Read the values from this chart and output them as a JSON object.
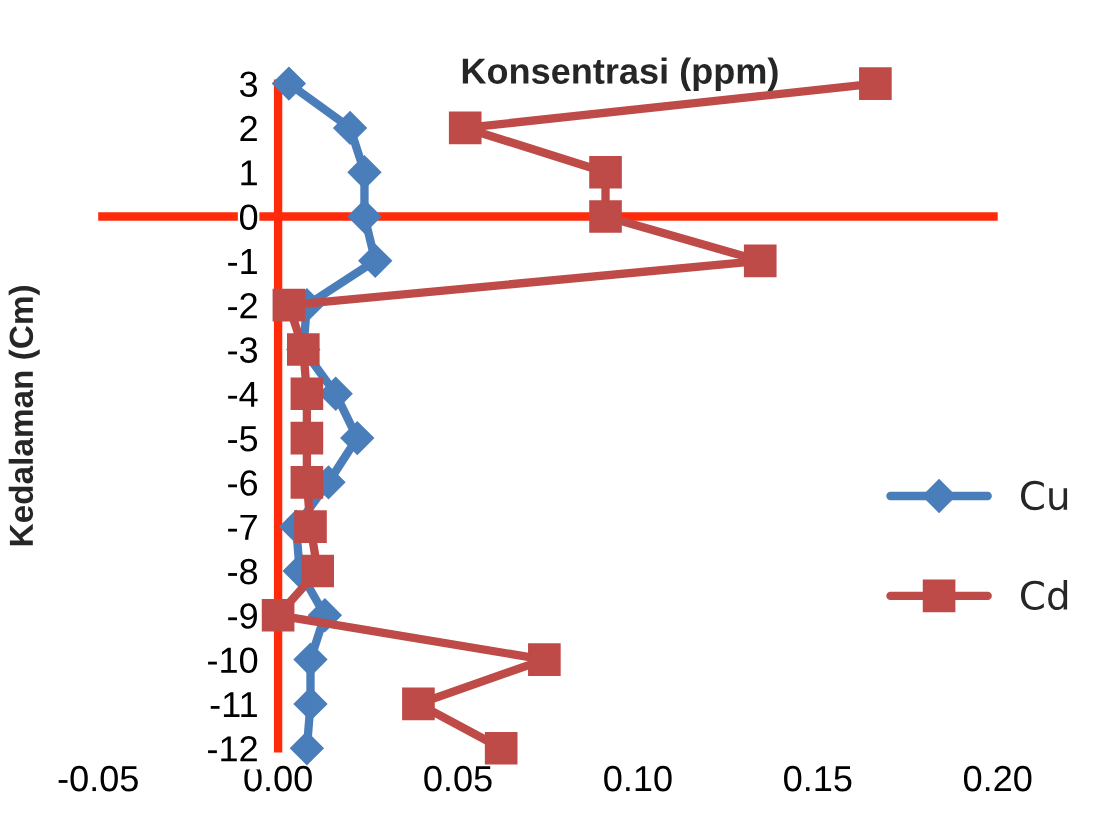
{
  "chart_data": {
    "type": "line",
    "xlabel": "Konsentrasi (ppm)",
    "ylabel": "Kedalaman (Cm)",
    "xlim": [
      -0.05,
      0.2
    ],
    "ylim": [
      -12,
      3
    ],
    "xticks": [
      {
        "value": -0.05,
        "label": "-0.05"
      },
      {
        "value": 0,
        "label": "0.00"
      },
      {
        "value": 0.05,
        "label": "0.05"
      },
      {
        "value": 0.1,
        "label": "0.10"
      },
      {
        "value": 0.15,
        "label": "0.15"
      },
      {
        "value": 0.2,
        "label": "0.20"
      }
    ],
    "yticks": [
      3,
      2,
      1,
      0,
      -1,
      -2,
      -3,
      -4,
      -5,
      -6,
      -7,
      -8,
      -9,
      -10,
      -11,
      -12
    ],
    "ref_lines": [
      {
        "axis": "y",
        "value": 0,
        "color": "#ff2a0a"
      }
    ],
    "legend": "right",
    "line_style": "solid",
    "grid": false,
    "series": [
      {
        "name": "Cu",
        "color": "#4a7ebb",
        "marker": "diamond",
        "x": [
          0.003,
          0.02,
          0.024,
          0.024,
          0.027,
          0.008,
          0.007,
          0.016,
          0.022,
          0.014,
          0.005,
          0.006,
          0.013,
          0.009,
          0.009,
          0.008
        ],
        "values": [
          3,
          2,
          1,
          0,
          -1,
          -2,
          -3,
          -4,
          -5,
          -6,
          -7,
          -8,
          -9,
          -10,
          -11,
          -12
        ]
      },
      {
        "name": "Cd",
        "color": "#be4b48",
        "marker": "square",
        "x": [
          0.166,
          0.052,
          0.091,
          0.091,
          0.134,
          0.003,
          0.007,
          0.008,
          0.008,
          0.008,
          0.009,
          0.011,
          0.0,
          0.074,
          0.039,
          0.062
        ],
        "values": [
          3,
          2,
          1,
          0,
          -1,
          -2,
          -3,
          -4,
          -5,
          -6,
          -7,
          -8,
          -9,
          -10,
          -11,
          -12
        ]
      }
    ]
  }
}
